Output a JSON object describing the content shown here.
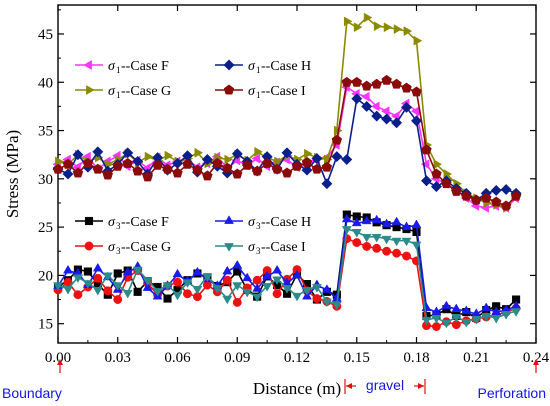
{
  "chart_data": {
    "type": "line",
    "xlabel": "Distance (m)",
    "ylabel": "Stress (MPa)",
    "xlim": [
      0,
      0.24
    ],
    "ylim": [
      13,
      48
    ],
    "xticks": [
      0.0,
      0.03,
      0.06,
      0.09,
      0.12,
      0.15,
      0.18,
      0.21,
      0.24
    ],
    "xtick_labels": [
      "0.00",
      "0.03",
      "0.06",
      "0.09",
      "0.12",
      "0.15",
      "0.18",
      "0.21",
      "0.24"
    ],
    "yticks": [
      15,
      20,
      25,
      30,
      35,
      40,
      45
    ],
    "ytick_labels": [
      "15",
      "20",
      "25",
      "30",
      "35",
      "40",
      "45"
    ],
    "grid": false,
    "legend_placement": "top-left (σ1) and lower-left (σ3)",
    "annotations": {
      "boundary": "Boundary",
      "gravel": "gravel",
      "perforation": "Perforation"
    },
    "series": [
      {
        "name": "σ1--Case F",
        "sym": "σ",
        "sub": "1",
        "case": "--Case F",
        "color": "#ff33ff",
        "marker": "tri-left",
        "x": [
          0.0,
          0.005,
          0.01,
          0.015,
          0.02,
          0.025,
          0.03,
          0.035,
          0.04,
          0.045,
          0.05,
          0.055,
          0.06,
          0.065,
          0.07,
          0.075,
          0.08,
          0.085,
          0.09,
          0.095,
          0.1,
          0.105,
          0.11,
          0.115,
          0.12,
          0.125,
          0.13,
          0.135,
          0.14,
          0.145,
          0.15,
          0.155,
          0.16,
          0.165,
          0.17,
          0.175,
          0.18,
          0.185,
          0.19,
          0.195,
          0.2,
          0.205,
          0.21,
          0.215,
          0.22,
          0.225,
          0.23
        ],
        "y": [
          31.5,
          32.0,
          31.2,
          32.3,
          31.0,
          31.8,
          32.4,
          31.3,
          31.9,
          31.1,
          32.2,
          31.4,
          31.8,
          32.0,
          31.2,
          31.6,
          32.3,
          31.1,
          31.9,
          31.4,
          32.1,
          31.3,
          31.7,
          32.0,
          31.2,
          31.5,
          31.9,
          32.2,
          33.5,
          39.5,
          38.8,
          38.5,
          37.5,
          37.0,
          36.5,
          37.8,
          37.0,
          31.5,
          30.0,
          29.5,
          28.8,
          28.0,
          27.2,
          27.0,
          27.2,
          27.0,
          28.0
        ]
      },
      {
        "name": "σ1--Case G",
        "sym": "σ",
        "sub": "1",
        "case": "--Case G",
        "color": "#8b8b00",
        "marker": "tri-right",
        "x": [
          0.0,
          0.005,
          0.01,
          0.015,
          0.02,
          0.025,
          0.03,
          0.035,
          0.04,
          0.045,
          0.05,
          0.055,
          0.06,
          0.065,
          0.07,
          0.075,
          0.08,
          0.085,
          0.09,
          0.095,
          0.1,
          0.105,
          0.11,
          0.115,
          0.12,
          0.125,
          0.13,
          0.135,
          0.14,
          0.145,
          0.15,
          0.155,
          0.16,
          0.165,
          0.17,
          0.175,
          0.18,
          0.185,
          0.19,
          0.195,
          0.2,
          0.205,
          0.21,
          0.215,
          0.22,
          0.225,
          0.23
        ],
        "y": [
          31.8,
          31.5,
          32.5,
          31.8,
          32.2,
          31.5,
          32.0,
          32.6,
          31.7,
          32.3,
          31.9,
          32.4,
          31.8,
          32.1,
          32.7,
          31.6,
          32.2,
          32.0,
          32.5,
          31.9,
          32.8,
          32.2,
          31.8,
          32.4,
          32.0,
          32.6,
          32.2,
          32.0,
          35.0,
          46.3,
          45.7,
          46.7,
          45.8,
          45.7,
          45.5,
          45.3,
          44.3,
          33.5,
          31.5,
          30.5,
          29.5,
          28.5,
          28.0,
          27.5,
          27.3,
          27.0,
          28.4
        ]
      },
      {
        "name": "σ1--Case H",
        "sym": "σ",
        "sub": "1",
        "case": "--Case H",
        "color": "#0b1f8a",
        "marker": "diamond",
        "x": [
          0.0,
          0.005,
          0.01,
          0.015,
          0.02,
          0.025,
          0.03,
          0.035,
          0.04,
          0.045,
          0.05,
          0.055,
          0.06,
          0.065,
          0.07,
          0.075,
          0.08,
          0.085,
          0.09,
          0.095,
          0.1,
          0.105,
          0.11,
          0.115,
          0.12,
          0.125,
          0.13,
          0.135,
          0.14,
          0.145,
          0.15,
          0.155,
          0.16,
          0.165,
          0.17,
          0.175,
          0.18,
          0.185,
          0.19,
          0.195,
          0.2,
          0.205,
          0.21,
          0.215,
          0.22,
          0.225,
          0.23
        ],
        "y": [
          31.0,
          30.5,
          32.5,
          31.2,
          32.8,
          30.8,
          31.5,
          32.7,
          31.8,
          30.5,
          32.2,
          30.9,
          31.6,
          32.4,
          30.7,
          32.0,
          31.3,
          30.6,
          32.6,
          31.8,
          30.8,
          32.3,
          31.0,
          32.7,
          31.5,
          30.9,
          32.1,
          29.5,
          32.3,
          32.0,
          38.3,
          37.5,
          36.5,
          36.2,
          35.8,
          37.4,
          36.0,
          29.8,
          29.2,
          29.8,
          29.0,
          28.5,
          27.8,
          28.5,
          28.8,
          28.9,
          28.5
        ]
      },
      {
        "name": "σ1--Case I",
        "sym": "σ",
        "sub": "1",
        "case": "--Case I",
        "color": "#8b0a0a",
        "marker": "pentagon",
        "x": [
          0.0,
          0.005,
          0.01,
          0.015,
          0.02,
          0.025,
          0.03,
          0.035,
          0.04,
          0.045,
          0.05,
          0.055,
          0.06,
          0.065,
          0.07,
          0.075,
          0.08,
          0.085,
          0.09,
          0.095,
          0.1,
          0.105,
          0.11,
          0.115,
          0.12,
          0.125,
          0.13,
          0.135,
          0.14,
          0.145,
          0.15,
          0.155,
          0.16,
          0.165,
          0.17,
          0.175,
          0.18,
          0.185,
          0.19,
          0.195,
          0.2,
          0.205,
          0.21,
          0.215,
          0.22,
          0.225,
          0.23
        ],
        "y": [
          31.0,
          31.5,
          30.6,
          31.6,
          31.0,
          30.4,
          31.3,
          31.6,
          30.8,
          30.2,
          31.4,
          31.0,
          30.6,
          31.5,
          30.9,
          30.3,
          31.6,
          31.1,
          30.5,
          31.4,
          30.8,
          31.6,
          31.0,
          30.6,
          31.3,
          31.7,
          31.0,
          31.2,
          34.0,
          40.0,
          40.0,
          39.6,
          39.8,
          40.2,
          39.8,
          39.4,
          39.0,
          33.0,
          30.5,
          29.5,
          28.7,
          28.2,
          27.8,
          28.0,
          27.6,
          27.2,
          28.2
        ]
      },
      {
        "name": "σ3--Case F",
        "sym": "σ",
        "sub": "3",
        "case": "--Case F",
        "color": "#000000",
        "marker": "square",
        "x": [
          0.0,
          0.005,
          0.01,
          0.015,
          0.02,
          0.025,
          0.03,
          0.035,
          0.04,
          0.045,
          0.05,
          0.055,
          0.06,
          0.065,
          0.07,
          0.075,
          0.08,
          0.085,
          0.09,
          0.095,
          0.1,
          0.105,
          0.11,
          0.115,
          0.12,
          0.125,
          0.13,
          0.135,
          0.14,
          0.145,
          0.15,
          0.155,
          0.16,
          0.165,
          0.17,
          0.175,
          0.18,
          0.185,
          0.19,
          0.195,
          0.2,
          0.205,
          0.21,
          0.215,
          0.22,
          0.225,
          0.23
        ],
        "y": [
          18.8,
          19.5,
          20.6,
          20.4,
          19.1,
          18.0,
          20.2,
          20.5,
          18.3,
          19.4,
          18.8,
          17.6,
          18.5,
          19.5,
          20.2,
          19.8,
          18.9,
          19.3,
          20.4,
          18.5,
          17.8,
          19.9,
          19.0,
          18.1,
          20.1,
          19.1,
          17.5,
          18.3,
          18.0,
          26.3,
          26.1,
          26.0,
          25.5,
          25.2,
          25.0,
          24.8,
          24.5,
          15.8,
          15.9,
          16.5,
          15.8,
          16.2,
          15.6,
          16.4,
          16.8,
          16.5,
          17.5
        ]
      },
      {
        "name": "σ3--Case G",
        "sym": "σ",
        "sub": "3",
        "case": "--Case G",
        "color": "#ee1111",
        "marker": "circle",
        "x": [
          0.0,
          0.005,
          0.01,
          0.015,
          0.02,
          0.025,
          0.03,
          0.035,
          0.04,
          0.045,
          0.05,
          0.055,
          0.06,
          0.065,
          0.07,
          0.075,
          0.08,
          0.085,
          0.09,
          0.095,
          0.1,
          0.105,
          0.11,
          0.115,
          0.12,
          0.125,
          0.13,
          0.135,
          0.14,
          0.145,
          0.15,
          0.155,
          0.16,
          0.165,
          0.17,
          0.175,
          0.18,
          0.185,
          0.19,
          0.195,
          0.2,
          0.205,
          0.21,
          0.215,
          0.22,
          0.225,
          0.23
        ],
        "y": [
          18.5,
          19.3,
          18.0,
          18.8,
          19.7,
          18.4,
          17.5,
          19.8,
          20.5,
          19.2,
          18.0,
          18.9,
          19.3,
          18.1,
          17.8,
          19.0,
          18.3,
          19.5,
          17.2,
          18.7,
          19.5,
          20.5,
          18.1,
          19.6,
          20.6,
          18.4,
          17.6,
          17.3,
          16.8,
          23.8,
          23.4,
          23.0,
          22.8,
          22.5,
          22.3,
          22.0,
          21.5,
          14.8,
          14.7,
          15.2,
          14.9,
          15.3,
          15.5,
          15.7,
          15.9,
          16.2,
          16.6
        ]
      },
      {
        "name": "σ3--Case H",
        "sym": "σ",
        "sub": "3",
        "case": "--Case H",
        "color": "#1a1aee",
        "marker": "tri-up",
        "x": [
          0.0,
          0.005,
          0.01,
          0.015,
          0.02,
          0.025,
          0.03,
          0.035,
          0.04,
          0.045,
          0.05,
          0.055,
          0.06,
          0.065,
          0.07,
          0.075,
          0.08,
          0.085,
          0.09,
          0.095,
          0.1,
          0.105,
          0.11,
          0.115,
          0.12,
          0.125,
          0.13,
          0.135,
          0.14,
          0.145,
          0.15,
          0.155,
          0.16,
          0.165,
          0.17,
          0.175,
          0.18,
          0.185,
          0.19,
          0.195,
          0.2,
          0.205,
          0.21,
          0.215,
          0.22,
          0.225,
          0.23
        ],
        "y": [
          18.9,
          20.5,
          20.2,
          19.0,
          20.7,
          19.8,
          18.5,
          20.3,
          20.9,
          18.7,
          17.8,
          18.9,
          20.1,
          19.4,
          20.3,
          19.6,
          18.9,
          20.4,
          21.0,
          19.7,
          18.6,
          19.9,
          20.5,
          19.2,
          20.0,
          17.8,
          19.0,
          18.5,
          17.6,
          25.8,
          25.4,
          25.6,
          25.7,
          25.3,
          25.5,
          25.0,
          25.2,
          16.6,
          16.2,
          16.8,
          16.5,
          16.3,
          16.0,
          16.6,
          16.2,
          16.4,
          16.8
        ]
      },
      {
        "name": "σ3--Case I",
        "sym": "σ",
        "sub": "3",
        "case": "--Case I",
        "color": "#2b8b8b",
        "marker": "tri-down",
        "x": [
          0.0,
          0.005,
          0.01,
          0.015,
          0.02,
          0.025,
          0.03,
          0.035,
          0.04,
          0.045,
          0.05,
          0.055,
          0.06,
          0.065,
          0.07,
          0.075,
          0.08,
          0.085,
          0.09,
          0.095,
          0.1,
          0.105,
          0.11,
          0.115,
          0.12,
          0.125,
          0.13,
          0.135,
          0.14,
          0.145,
          0.15,
          0.155,
          0.16,
          0.165,
          0.17,
          0.175,
          0.18,
          0.185,
          0.19,
          0.195,
          0.2,
          0.205,
          0.21,
          0.215,
          0.22,
          0.225,
          0.23
        ],
        "y": [
          19.0,
          18.6,
          19.8,
          19.2,
          18.5,
          20.0,
          19.0,
          18.2,
          20.6,
          19.5,
          18.4,
          19.0,
          18.0,
          19.3,
          18.6,
          19.9,
          18.7,
          17.6,
          19.0,
          18.3,
          17.8,
          18.9,
          19.6,
          18.7,
          17.9,
          18.5,
          18.8,
          17.3,
          17.0,
          24.8,
          24.5,
          24.0,
          24.0,
          23.8,
          23.6,
          23.6,
          23.2,
          15.4,
          15.6,
          15.1,
          15.7,
          15.2,
          15.5,
          15.8,
          15.6,
          16.0,
          16.3
        ]
      }
    ]
  }
}
